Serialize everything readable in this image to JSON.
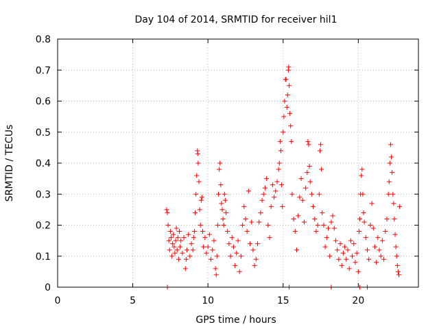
{
  "chart_data": {
    "type": "scatter",
    "title": "Day 104 of 2014, SRMTID for receiver hil1",
    "xlabel": "GPS time / hours",
    "ylabel": "SRMTID / TECUs",
    "xlim": [
      0,
      24
    ],
    "ylim": [
      0,
      0.8
    ],
    "xticks": [
      "0",
      "5",
      "10",
      "15",
      "20"
    ],
    "xtick_values": [
      0,
      5,
      10,
      15,
      20
    ],
    "yticks": [
      "0",
      "0.1",
      "0.2",
      "0.3",
      "0.4",
      "0.5",
      "0.6",
      "0.7",
      "0.8"
    ],
    "ytick_values": [
      0,
      0.1,
      0.2,
      0.3,
      0.4,
      0.5,
      0.6,
      0.7,
      0.8
    ],
    "grid": true,
    "marker": "+",
    "color": "#ff0000",
    "series": [
      {
        "name": "hil1",
        "points": [
          [
            7.25,
            0.25
          ],
          [
            7.3,
            0.24
          ],
          [
            7.35,
            0.2
          ],
          [
            7.4,
            0.15
          ],
          [
            7.45,
            0.12
          ],
          [
            7.5,
            0.18
          ],
          [
            7.55,
            0.16
          ],
          [
            7.6,
            0.1
          ],
          [
            7.65,
            0.14
          ],
          [
            7.7,
            0.17
          ],
          [
            7.75,
            0.13
          ],
          [
            7.8,
            0.11
          ],
          [
            7.85,
            0.15
          ],
          [
            7.9,
            0.19
          ],
          [
            7.95,
            0.12
          ],
          [
            8.0,
            0.16
          ],
          [
            8.05,
            0.09
          ],
          [
            8.1,
            0.18
          ],
          [
            8.15,
            0.13
          ],
          [
            8.2,
            0.15
          ],
          [
            8.3,
            0.11
          ],
          [
            8.4,
            0.16
          ],
          [
            8.5,
            0.06
          ],
          [
            8.55,
            0.09
          ],
          [
            8.6,
            0.12
          ],
          [
            8.7,
            0.17
          ],
          [
            8.8,
            0.1
          ],
          [
            8.9,
            0.14
          ],
          [
            9.0,
            0.12
          ],
          [
            9.05,
            0.16
          ],
          [
            9.1,
            0.18
          ],
          [
            9.15,
            0.24
          ],
          [
            9.2,
            0.3
          ],
          [
            9.25,
            0.36
          ],
          [
            9.3,
            0.44
          ],
          [
            9.32,
            0.43
          ],
          [
            9.35,
            0.4
          ],
          [
            9.4,
            0.34
          ],
          [
            9.45,
            0.25
          ],
          [
            9.5,
            0.2
          ],
          [
            9.55,
            0.28
          ],
          [
            9.6,
            0.29
          ],
          [
            9.65,
            0.18
          ],
          [
            9.7,
            0.13
          ],
          [
            9.8,
            0.16
          ],
          [
            9.9,
            0.11
          ],
          [
            10.0,
            0.13
          ],
          [
            10.1,
            0.17
          ],
          [
            10.2,
            0.09
          ],
          [
            10.3,
            0.12
          ],
          [
            10.4,
            0.15
          ],
          [
            10.5,
            0.06
          ],
          [
            10.55,
            0.04
          ],
          [
            10.6,
            0.1
          ],
          [
            10.65,
            0.2
          ],
          [
            10.7,
            0.3
          ],
          [
            10.75,
            0.38
          ],
          [
            10.8,
            0.4
          ],
          [
            10.85,
            0.33
          ],
          [
            10.9,
            0.27
          ],
          [
            10.95,
            0.25
          ],
          [
            11.0,
            0.22
          ],
          [
            11.05,
            0.2
          ],
          [
            11.1,
            0.3
          ],
          [
            11.15,
            0.28
          ],
          [
            11.2,
            0.24
          ],
          [
            11.3,
            0.18
          ],
          [
            11.4,
            0.14
          ],
          [
            11.5,
            0.1
          ],
          [
            11.6,
            0.16
          ],
          [
            11.7,
            0.13
          ],
          [
            11.8,
            0.07
          ],
          [
            11.9,
            0.11
          ],
          [
            12.0,
            0.15
          ],
          [
            12.1,
            0.05
          ],
          [
            12.2,
            0.1
          ],
          [
            12.3,
            0.2
          ],
          [
            12.4,
            0.26
          ],
          [
            12.5,
            0.22
          ],
          [
            12.6,
            0.18
          ],
          [
            12.7,
            0.31
          ],
          [
            12.8,
            0.14
          ],
          [
            12.9,
            0.21
          ],
          [
            13.0,
            0.12
          ],
          [
            13.1,
            0.07
          ],
          [
            13.2,
            0.09
          ],
          [
            13.3,
            0.14
          ],
          [
            13.4,
            0.21
          ],
          [
            13.5,
            0.24
          ],
          [
            13.6,
            0.28
          ],
          [
            13.7,
            0.3
          ],
          [
            13.8,
            0.32
          ],
          [
            13.9,
            0.35
          ],
          [
            14.0,
            0.2
          ],
          [
            14.1,
            0.16
          ],
          [
            14.2,
            0.26
          ],
          [
            14.3,
            0.33
          ],
          [
            14.4,
            0.29
          ],
          [
            14.5,
            0.31
          ],
          [
            14.6,
            0.34
          ],
          [
            14.7,
            0.38
          ],
          [
            14.75,
            0.4
          ],
          [
            14.8,
            0.47
          ],
          [
            14.85,
            0.44
          ],
          [
            14.9,
            0.33
          ],
          [
            14.95,
            0.26
          ],
          [
            15.0,
            0.5
          ],
          [
            15.05,
            0.55
          ],
          [
            15.1,
            0.6
          ],
          [
            15.15,
            0.67
          ],
          [
            15.2,
            0.67
          ],
          [
            15.25,
            0.58
          ],
          [
            15.3,
            0.62
          ],
          [
            15.35,
            0.7
          ],
          [
            15.37,
            0.71
          ],
          [
            15.4,
            0.65
          ],
          [
            15.45,
            0.56
          ],
          [
            15.5,
            0.52
          ],
          [
            15.55,
            0.47
          ],
          [
            15.6,
            0.3
          ],
          [
            15.7,
            0.22
          ],
          [
            15.8,
            0.18
          ],
          [
            15.9,
            0.12
          ],
          [
            16.0,
            0.23
          ],
          [
            16.1,
            0.29
          ],
          [
            16.2,
            0.35
          ],
          [
            16.3,
            0.28
          ],
          [
            16.4,
            0.21
          ],
          [
            16.5,
            0.32
          ],
          [
            16.6,
            0.37
          ],
          [
            16.65,
            0.47
          ],
          [
            16.7,
            0.46
          ],
          [
            16.75,
            0.39
          ],
          [
            16.8,
            0.34
          ],
          [
            16.9,
            0.3
          ],
          [
            17.0,
            0.26
          ],
          [
            17.1,
            0.22
          ],
          [
            17.2,
            0.18
          ],
          [
            17.3,
            0.2
          ],
          [
            17.4,
            0.3
          ],
          [
            17.45,
            0.44
          ],
          [
            17.5,
            0.46
          ],
          [
            17.55,
            0.38
          ],
          [
            17.6,
            0.24
          ],
          [
            17.7,
            0.2
          ],
          [
            17.8,
            0.13
          ],
          [
            17.9,
            0.16
          ],
          [
            18.0,
            0.19
          ],
          [
            18.1,
            0.1
          ],
          [
            18.2,
            0.21
          ],
          [
            18.3,
            0.23
          ],
          [
            18.4,
            0.19
          ],
          [
            18.5,
            0.15
          ],
          [
            18.6,
            0.12
          ],
          [
            18.7,
            0.09
          ],
          [
            18.8,
            0.14
          ],
          [
            18.9,
            0.07
          ],
          [
            19.0,
            0.11
          ],
          [
            19.1,
            0.13
          ],
          [
            19.2,
            0.09
          ],
          [
            19.3,
            0.12
          ],
          [
            19.4,
            0.06
          ],
          [
            19.5,
            0.15
          ],
          [
            19.6,
            0.1
          ],
          [
            19.7,
            0.14
          ],
          [
            19.8,
            0.08
          ],
          [
            19.9,
            0.11
          ],
          [
            20.0,
            0.05
          ],
          [
            20.05,
            0.18
          ],
          [
            20.1,
            0.22
          ],
          [
            20.15,
            0.3
          ],
          [
            20.2,
            0.36
          ],
          [
            20.25,
            0.38
          ],
          [
            20.3,
            0.3
          ],
          [
            20.35,
            0.24
          ],
          [
            20.4,
            0.21
          ],
          [
            20.5,
            0.16
          ],
          [
            20.6,
            0.12
          ],
          [
            20.7,
            0.09
          ],
          [
            20.8,
            0.2
          ],
          [
            20.9,
            0.27
          ],
          [
            21.0,
            0.19
          ],
          [
            21.1,
            0.13
          ],
          [
            21.2,
            0.08
          ],
          [
            21.3,
            0.16
          ],
          [
            21.4,
            0.12
          ],
          [
            21.5,
            0.1
          ],
          [
            21.6,
            0.15
          ],
          [
            21.7,
            0.09
          ],
          [
            21.8,
            0.18
          ],
          [
            21.9,
            0.22
          ],
          [
            22.0,
            0.3
          ],
          [
            22.05,
            0.34
          ],
          [
            22.1,
            0.4
          ],
          [
            22.15,
            0.46
          ],
          [
            22.2,
            0.42
          ],
          [
            22.25,
            0.37
          ],
          [
            22.3,
            0.3
          ],
          [
            22.35,
            0.27
          ],
          [
            22.4,
            0.22
          ],
          [
            22.45,
            0.17
          ],
          [
            22.5,
            0.13
          ],
          [
            22.55,
            0.1
          ],
          [
            22.6,
            0.07
          ],
          [
            22.65,
            0.05
          ],
          [
            22.7,
            0.04
          ],
          [
            22.75,
            0.26
          ],
          [
            7.3,
            0.0
          ],
          [
            18.2,
            0.0
          ],
          [
            20.1,
            0.0
          ],
          [
            15.4,
            0.0
          ],
          [
            20.6,
            0.0
          ]
        ]
      }
    ]
  }
}
